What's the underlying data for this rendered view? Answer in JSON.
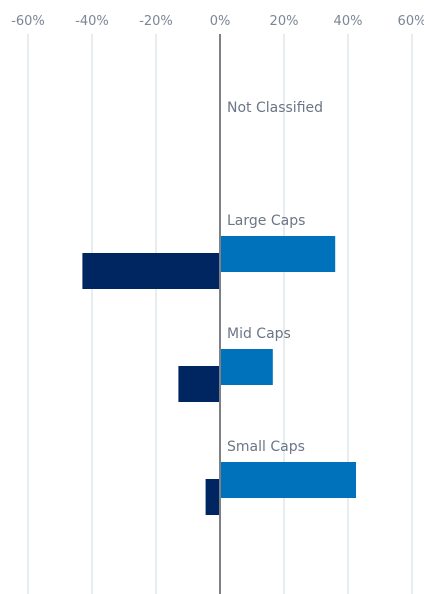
{
  "chart_data": {
    "type": "bar",
    "orientation": "horizontal",
    "title": "",
    "xlabel": "",
    "ylabel": "",
    "xlim": [
      -60,
      60
    ],
    "x_ticks": [
      -60,
      -40,
      -20,
      0,
      20,
      40,
      60
    ],
    "x_tick_labels": [
      "-60%",
      "-40%",
      "-20%",
      "0%",
      "20%",
      "40%",
      "60%"
    ],
    "axis_position": "top",
    "grid": true,
    "legend": "none",
    "categories": [
      "Not Classified",
      "Large Caps",
      "Mid Caps",
      "Small Caps"
    ],
    "series": [
      {
        "color": "#0072bc",
        "values": [
          0,
          36,
          16.5,
          42.5
        ]
      },
      {
        "color": "#002661",
        "values": [
          0,
          -43,
          -13,
          -4.5
        ]
      }
    ],
    "colors": {
      "grid": "#dde6ec",
      "zero_line": "#7d8085"
    }
  }
}
